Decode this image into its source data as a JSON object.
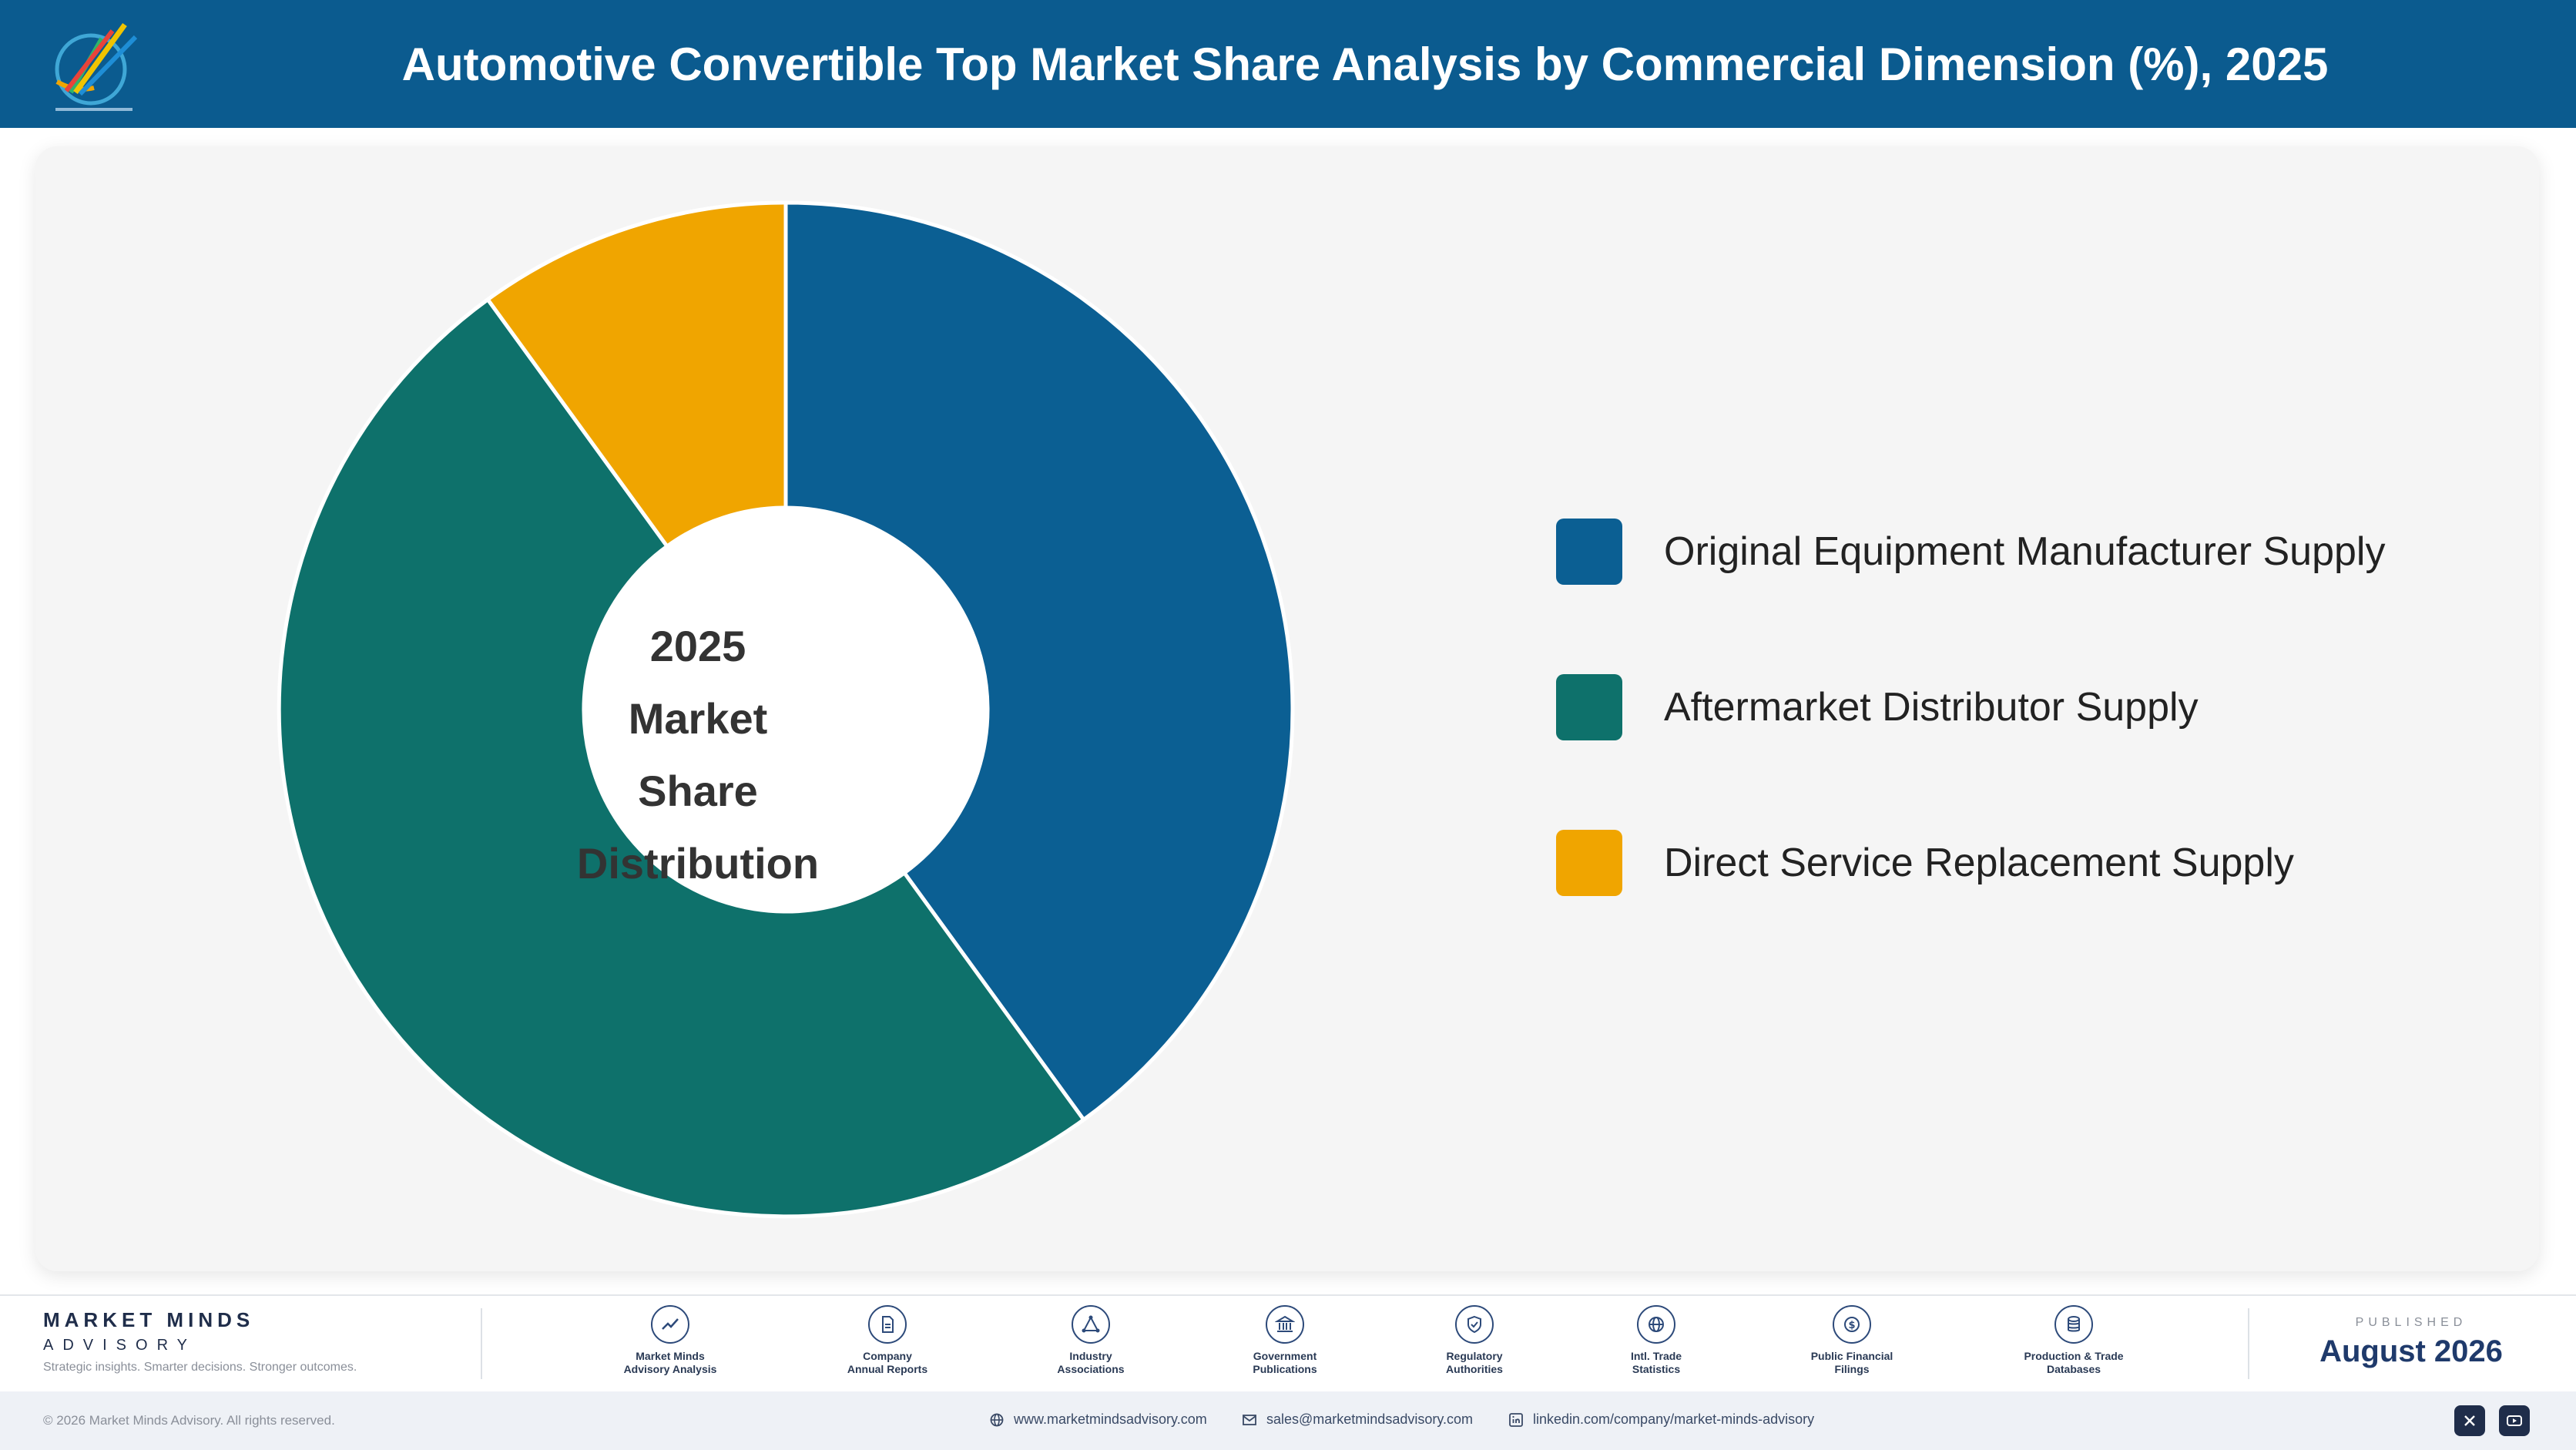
{
  "header": {
    "title": "Automotive Convertible Top Market Share Analysis by Commercial Dimension (%), 2025",
    "logo_icon": "market-minds-logo"
  },
  "chart_data": {
    "type": "pie",
    "variant": "donut",
    "center_label": [
      "2025",
      "Market Share",
      "Distribution"
    ],
    "categories": [
      "Original Equipment Manufacturer Supply",
      "Aftermarket Distributor Supply",
      "Direct Service Replacement Supply"
    ],
    "values": [
      40,
      50,
      10
    ],
    "unit": "%",
    "colors": [
      "#0b5f93",
      "#0e716b",
      "#f0a500"
    ],
    "legend_position": "right"
  },
  "footer": {
    "brand_name": "MARKET MINDS",
    "brand_sub": "ADVISORY",
    "tagline": "Strategic insights. Smarter decisions. Stronger outcomes.",
    "sources": [
      {
        "label": "Market Minds\nAdvisory Analysis",
        "icon": "trend-line-icon"
      },
      {
        "label": "Company\nAnnual Reports",
        "icon": "document-icon"
      },
      {
        "label": "Industry\nAssociations",
        "icon": "network-icon"
      },
      {
        "label": "Government\nPublications",
        "icon": "government-building-icon"
      },
      {
        "label": "Regulatory\nAuthorities",
        "icon": "shield-check-icon"
      },
      {
        "label": "Intl. Trade\nStatistics",
        "icon": "globe-icon"
      },
      {
        "label": "Public Financial\nFilings",
        "icon": "dollar-coin-icon"
      },
      {
        "label": "Production & Trade\nDatabases",
        "icon": "database-icon"
      }
    ],
    "published_label": "PUBLISHED",
    "published_date": "August 2026",
    "copyright": "© 2026 Market Minds Advisory. All rights reserved.",
    "website": "www.marketmindsadvisory.com",
    "email": "sales@marketmindsadvisory.com",
    "linkedin": "linkedin.com/company/market-minds-advisory",
    "social_icons": [
      "x-icon",
      "youtube-icon"
    ]
  }
}
